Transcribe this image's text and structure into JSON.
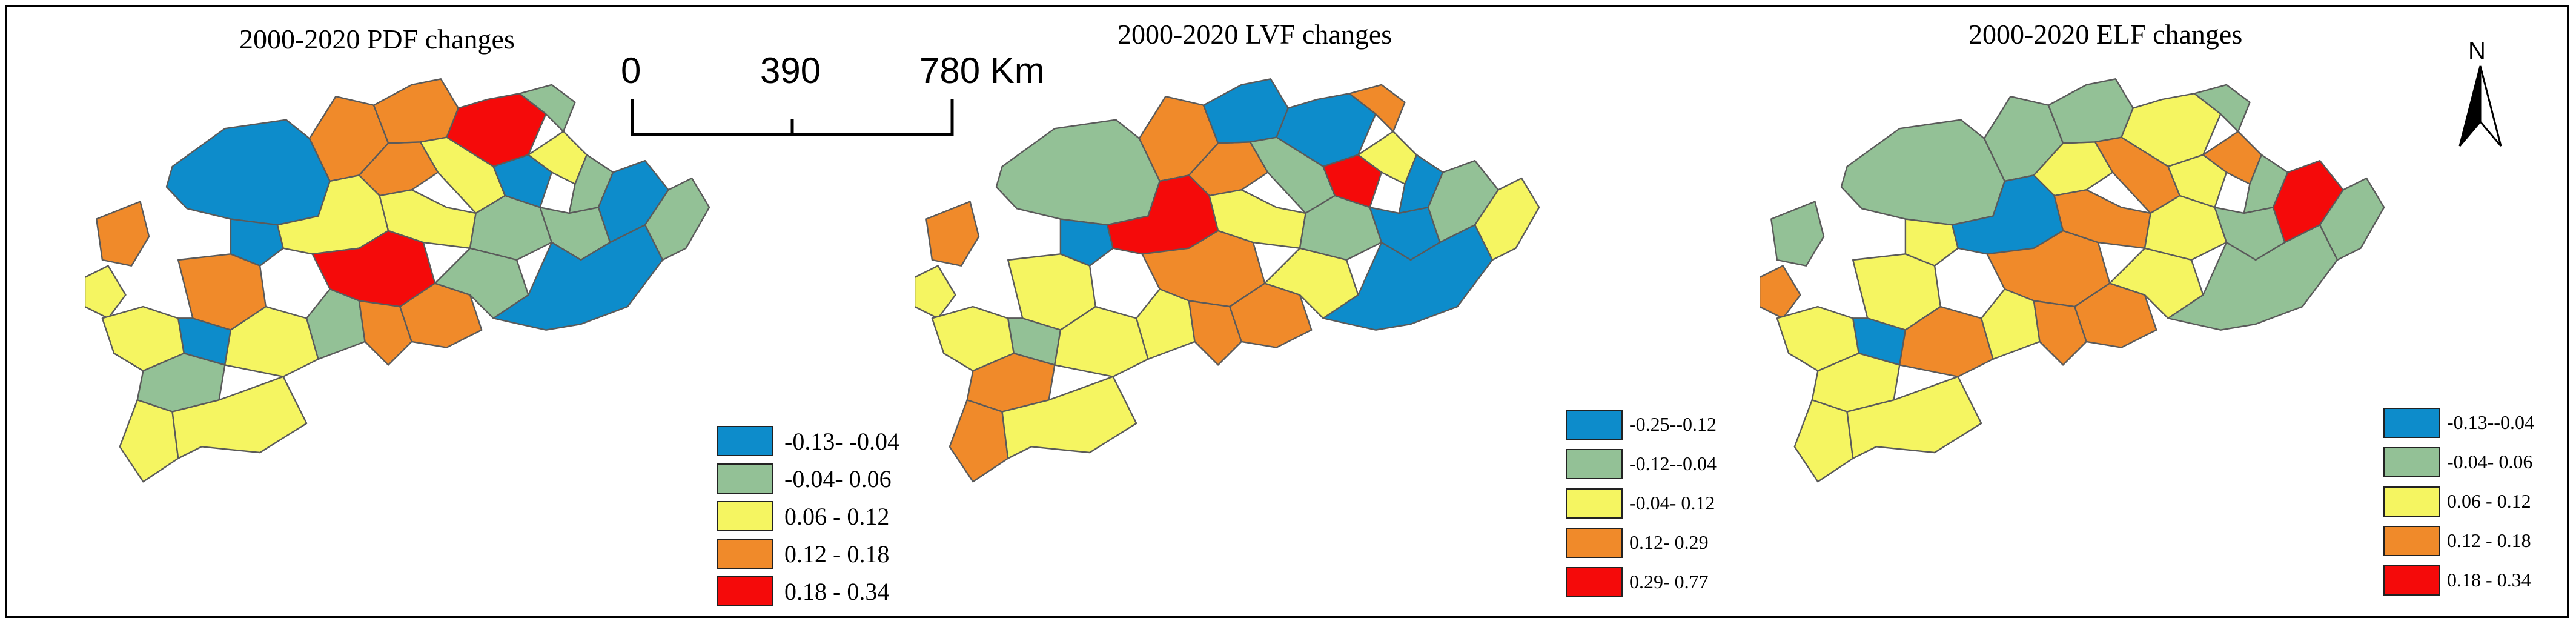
{
  "colors": {
    "blue": "#0D8CCB",
    "green": "#93C196",
    "yellow": "#F5F561",
    "orange": "#F08A2A",
    "red": "#F50A0A"
  },
  "scale_bar": {
    "labels": [
      "0",
      "390",
      "780 Km"
    ]
  },
  "north_arrow": {
    "letter": "N"
  },
  "panels": [
    {
      "title": "2000-2020 PDF changes",
      "legend": [
        {
          "label": "-0.13- -0.04",
          "color": "blue"
        },
        {
          "label": "-0.04- 0.06",
          "color": "green"
        },
        {
          "label": "0.06 - 0.12",
          "color": "yellow"
        },
        {
          "label": "0.12 - 0.18",
          "color": "orange"
        },
        {
          "label": "0.18 - 0.34",
          "color": "red"
        }
      ]
    },
    {
      "title": "2000-2020 LVF changes",
      "legend": [
        {
          "label": "-0.25--0.12",
          "color": "blue"
        },
        {
          "label": "-0.12--0.04",
          "color": "green"
        },
        {
          "label": "-0.04- 0.12",
          "color": "yellow"
        },
        {
          "label": "0.12- 0.29",
          "color": "orange"
        },
        {
          "label": "0.29- 0.77",
          "color": "red"
        }
      ]
    },
    {
      "title": "2000-2020 ELF changes",
      "legend": [
        {
          "label": "-0.13--0.04",
          "color": "blue"
        },
        {
          "label": "-0.04- 0.06",
          "color": "green"
        },
        {
          "label": "0.06 - 0.12",
          "color": "yellow"
        },
        {
          "label": "0.12 - 0.18",
          "color": "orange"
        },
        {
          "label": "0.18 - 0.34",
          "color": "red"
        }
      ]
    }
  ],
  "regions": {
    "pdf": [
      "blue",
      "orange",
      "orange",
      "yellow",
      "orange",
      "red",
      "yellow",
      "green",
      "blue",
      "yellow",
      "green",
      "orange",
      "yellow",
      "blue",
      "orange",
      "red",
      "yellow",
      "green",
      "green",
      "blue",
      "yellow",
      "blue",
      "green",
      "yellow",
      "green",
      "orange",
      "orange",
      "green",
      "yellow",
      "yellow",
      "blue",
      "green"
    ],
    "lvf": [
      "green",
      "orange",
      "orange",
      "red",
      "blue",
      "blue",
      "green",
      "orange",
      "red",
      "yellow",
      "blue",
      "orange",
      "yellow",
      "blue",
      "yellow",
      "orange",
      "yellow",
      "green",
      "blue",
      "green",
      "yellow",
      "green",
      "orange",
      "yellow",
      "yellow",
      "orange",
      "orange",
      "yellow",
      "orange",
      "yellow",
      "blue",
      "yellow"
    ],
    "elf": [
      "green",
      "green",
      "yellow",
      "blue",
      "green",
      "yellow",
      "orange",
      "green",
      "yellow",
      "orange",
      "green",
      "green",
      "orange",
      "yellow",
      "yellow",
      "orange",
      "orange",
      "yellow",
      "green",
      "red",
      "yellow",
      "blue",
      "yellow",
      "orange",
      "yellow",
      "orange",
      "orange",
      "yellow",
      "yellow",
      "yellow",
      "green",
      "green"
    ]
  }
}
